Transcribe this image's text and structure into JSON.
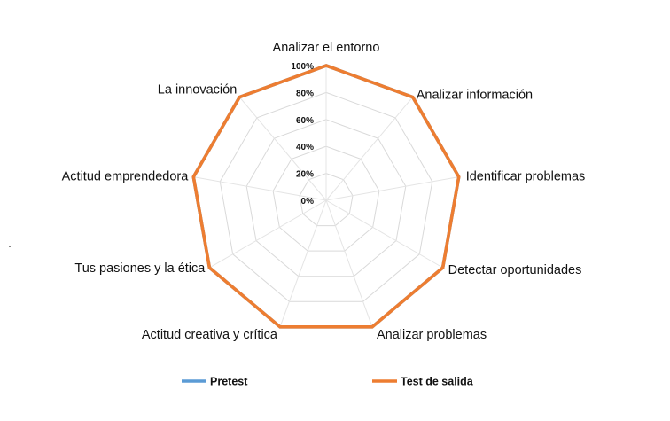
{
  "chart_data": {
    "type": "radar",
    "categories": [
      "Analizar el entorno",
      "Analizar información",
      "Identificar problemas",
      "Detectar oportunidades",
      "Analizar problemas",
      "Actitud creativa y crítica",
      "Tus pasiones y la ética",
      "Actitud emprendedora",
      "La innovación"
    ],
    "series": [
      {
        "name": "Pretest",
        "color": "#5b9bd5",
        "values": [
          1,
          1,
          1,
          1,
          1,
          1,
          1,
          1,
          1
        ]
      },
      {
        "name": "Test de salida",
        "color": "#ed7d31",
        "values": [
          1,
          1,
          1,
          1,
          1,
          1,
          1,
          1,
          1
        ]
      }
    ],
    "ticks": [
      "0%",
      "20%",
      "40%",
      "60%",
      "80%",
      "100%"
    ],
    "tick_values": [
      0,
      0.2,
      0.4,
      0.6,
      0.8,
      1.0
    ],
    "rlim": [
      0,
      1
    ],
    "grid": true,
    "legend_position": "bottom"
  }
}
